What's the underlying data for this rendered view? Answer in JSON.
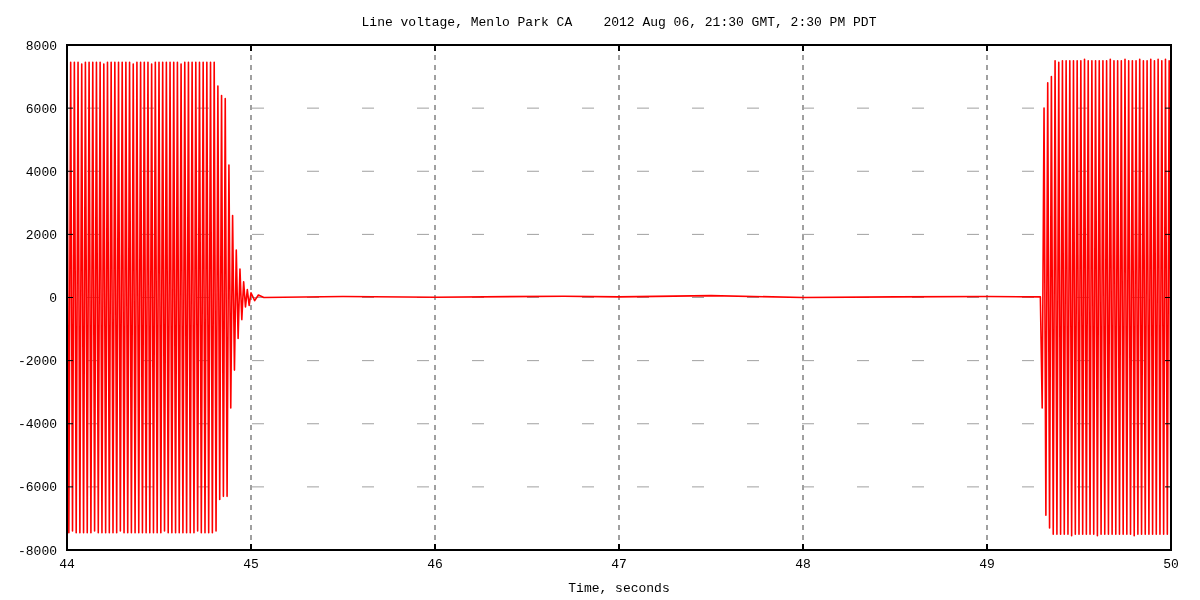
{
  "chart_data": {
    "type": "line",
    "title": "Line voltage, Menlo Park CA    2012 Aug 06, 21:30 GMT, 2:30 PM PDT",
    "xlabel": "Time, seconds",
    "x": [
      44,
      44.01,
      44.02,
      44.03,
      44.04,
      44.05,
      44.06,
      44.07,
      44.08,
      44.09,
      44.1,
      44.11,
      44.12,
      44.13,
      44.14,
      44.15,
      44.16,
      44.17,
      44.18,
      44.19,
      44.2,
      44.21,
      44.22,
      44.23,
      44.24,
      44.25,
      44.26,
      44.27,
      44.28,
      44.29,
      44.3,
      44.31,
      44.32,
      44.33,
      44.34,
      44.35,
      44.36,
      44.37,
      44.38,
      44.39,
      44.4,
      44.41,
      44.42,
      44.43,
      44.44,
      44.45,
      44.46,
      44.47,
      44.48,
      44.49,
      44.5,
      44.51,
      44.52,
      44.53,
      44.54,
      44.55,
      44.56,
      44.57,
      44.58,
      44.59,
      44.6,
      44.61,
      44.62,
      44.63,
      44.64,
      44.65,
      44.66,
      44.67,
      44.68,
      44.69,
      44.7,
      44.71,
      44.72,
      44.73,
      44.74,
      44.75,
      44.76,
      44.77,
      44.78,
      44.79,
      44.8,
      44.81,
      44.82,
      44.83,
      44.84,
      44.85,
      44.86,
      44.87,
      44.88,
      44.89,
      44.9,
      44.91,
      44.92,
      44.93,
      44.94,
      44.95,
      44.96,
      44.97,
      44.98,
      44.99,
      45,
      45.02,
      45.04,
      45.07,
      45.5,
      46,
      46.7,
      47,
      47.5,
      48,
      48.5,
      49,
      49.29,
      49.3,
      49.31,
      49.32,
      49.33,
      49.34,
      49.35,
      49.36,
      49.37,
      49.38,
      49.39,
      49.4,
      49.41,
      49.42,
      49.43,
      49.44,
      49.45,
      49.46,
      49.47,
      49.48,
      49.49,
      49.5,
      49.51,
      49.52,
      49.53,
      49.54,
      49.55,
      49.56,
      49.57,
      49.58,
      49.59,
      49.6,
      49.61,
      49.62,
      49.63,
      49.64,
      49.65,
      49.66,
      49.67,
      49.68,
      49.69,
      49.7,
      49.71,
      49.72,
      49.73,
      49.74,
      49.75,
      49.76,
      49.77,
      49.78,
      49.79,
      49.8,
      49.81,
      49.82,
      49.83,
      49.84,
      49.85,
      49.86,
      49.87,
      49.88,
      49.89,
      49.9,
      49.91,
      49.92,
      49.93,
      49.94,
      49.95,
      49.96,
      49.97,
      49.98,
      49.99,
      50
    ],
    "series": [
      {
        "color": "#ff0000",
        "values": [
          7450,
          -7450,
          7450,
          -7400,
          7450,
          -7450,
          7450,
          -7450,
          7400,
          -7450,
          7450,
          -7450,
          7450,
          -7450,
          7450,
          -7400,
          7450,
          -7450,
          7450,
          -7450,
          7400,
          -7450,
          7450,
          -7450,
          7450,
          -7450,
          7450,
          -7450,
          7450,
          -7400,
          7450,
          -7450,
          7450,
          -7450,
          7450,
          -7450,
          7400,
          -7450,
          7450,
          -7450,
          7450,
          -7450,
          7450,
          -7450,
          7450,
          -7450,
          7400,
          -7450,
          7450,
          -7450,
          7450,
          -7450,
          7450,
          -7400,
          7450,
          -7450,
          7450,
          -7450,
          7450,
          -7450,
          7450,
          -7450,
          7400,
          -7450,
          7450,
          -7450,
          7450,
          -7450,
          7450,
          -7450,
          7450,
          -7400,
          7450,
          -7450,
          7450,
          -7450,
          7450,
          -7450,
          7450,
          -7450,
          7450,
          -7400,
          6700,
          -6400,
          6400,
          -6300,
          6300,
          -6300,
          4200,
          -3500,
          2600,
          -2300,
          1500,
          -1300,
          900,
          -700,
          500,
          -300,
          250,
          -250,
          150,
          -100,
          80,
          0,
          30,
          10,
          40,
          20,
          60,
          0,
          20,
          30,
          20,
          -3500,
          6000,
          -6900,
          6800,
          -7300,
          7000,
          -7500,
          7500,
          -7500,
          7450,
          -7500,
          7500,
          -7500,
          7500,
          -7500,
          7500,
          -7550,
          7500,
          -7500,
          7500,
          -7500,
          7500,
          -7500,
          7550,
          -7500,
          7500,
          -7500,
          7500,
          -7500,
          7500,
          -7550,
          7500,
          -7500,
          7500,
          -7500,
          7500,
          -7500,
          7550,
          -7500,
          7500,
          -7500,
          7500,
          -7500,
          7500,
          -7500,
          7550,
          -7500,
          7500,
          -7500,
          7500,
          -7550,
          7500,
          -7500,
          7550,
          -7500,
          7500,
          -7500,
          7500,
          -7500,
          7550,
          -7500,
          7500,
          -7500,
          7550,
          -7500,
          7500,
          -7500,
          7550,
          -7500,
          7500,
          -7500
        ]
      }
    ],
    "xlim": [
      44,
      50
    ],
    "xticks": [
      44,
      45,
      46,
      47,
      48,
      49,
      50
    ],
    "ylim": [
      -8000,
      8000
    ],
    "yticks": [
      -8000,
      -6000,
      -4000,
      -2000,
      0,
      2000,
      4000,
      6000,
      8000
    ],
    "grid": true,
    "line_style": "solid",
    "marker": "none"
  }
}
